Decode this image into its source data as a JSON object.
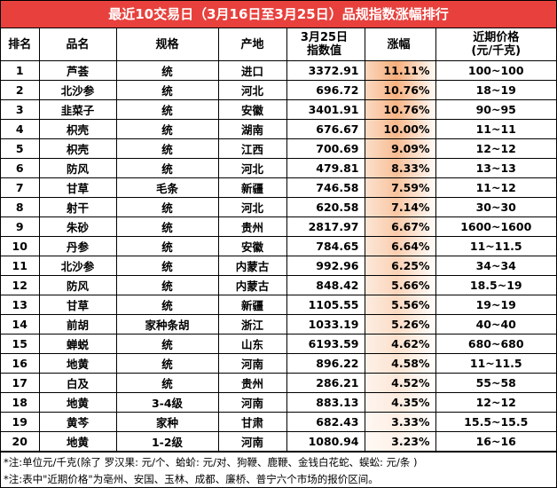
{
  "title": "最近10交易日（3月16日至3月25日）品规指数涨幅排行",
  "table": {
    "header": [
      "排名",
      "品名",
      "规格",
      "产地",
      [
        "3月25日",
        "指数值"
      ],
      "涨幅",
      [
        "近期价格",
        "(元/千克)"
      ]
    ],
    "rows": [
      [
        "1",
        "芦荟",
        "统",
        "进口",
        "3372.91",
        "11.11%",
        "100~100"
      ],
      [
        "2",
        "北沙参",
        "统",
        "河北",
        "696.72",
        "10.76%",
        "18~19"
      ],
      [
        "3",
        "韭菜子",
        "统",
        "安徽",
        "3401.91",
        "10.76%",
        "90~95"
      ],
      [
        "4",
        "枳壳",
        "统",
        "湖南",
        "676.67",
        "10.00%",
        "11~11"
      ],
      [
        "5",
        "枳壳",
        "统",
        "江西",
        "700.69",
        "9.09%",
        "12~12"
      ],
      [
        "6",
        "防风",
        "统",
        "河北",
        "479.81",
        "8.33%",
        "13~13"
      ],
      [
        "7",
        "甘草",
        "毛条",
        "新疆",
        "746.58",
        "7.59%",
        "11~12"
      ],
      [
        "8",
        "射干",
        "统",
        "河北",
        "620.58",
        "7.14%",
        "30~30"
      ],
      [
        "9",
        "朱砂",
        "统",
        "贵州",
        "2817.97",
        "6.67%",
        "1600~1600"
      ],
      [
        "10",
        "丹参",
        "统",
        "安徽",
        "784.65",
        "6.64%",
        "11~11.5"
      ],
      [
        "11",
        "北沙参",
        "统",
        "内蒙古",
        "992.96",
        "6.25%",
        "34~34"
      ],
      [
        "12",
        "防风",
        "统",
        "内蒙古",
        "848.42",
        "5.66%",
        "18.5~19"
      ],
      [
        "13",
        "甘草",
        "统",
        "新疆",
        "1105.55",
        "5.56%",
        "19~19"
      ],
      [
        "14",
        "前胡",
        "家种条胡",
        "浙江",
        "1033.19",
        "5.26%",
        "40~40"
      ],
      [
        "15",
        "蝉蜕",
        "统",
        "山东",
        "6193.59",
        "4.62%",
        "680~680"
      ],
      [
        "16",
        "地黄",
        "统",
        "河南",
        "896.22",
        "4.58%",
        "11~11.5"
      ],
      [
        "17",
        "白及",
        "统",
        "贵州",
        "286.21",
        "4.52%",
        "55~58"
      ],
      [
        "18",
        "地黄",
        "3-4级",
        "河南",
        "883.13",
        "4.35%",
        "12~12"
      ],
      [
        "19",
        "黄芩",
        "家种",
        "甘肃",
        "682.43",
        "3.33%",
        "15.5~15.5"
      ],
      [
        "20",
        "地黄",
        "1-2级",
        "河南",
        "1080.94",
        "3.23%",
        "16~16"
      ]
    ]
  },
  "notes": [
    "*注:单位元/千克(除了 罗汉果: 元/个、蛤蚧: 元/对、狗鞭、鹿鞭、金钱白花蛇、蜈蚣: 元/条 )",
    "*注:表中\"近期价格\"为亳州、安国、玉林、成都、廉桥、普宁六个市场的报价区间。"
  ]
}
